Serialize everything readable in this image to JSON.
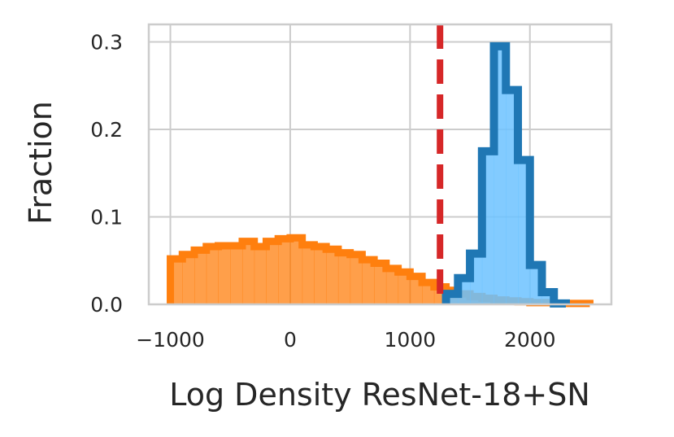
{
  "chart_data": {
    "type": "histogram",
    "xlabel": "Log Density ResNet-18+SN",
    "ylabel": "Fraction",
    "xlim": [
      -1180,
      2680
    ],
    "ylim": [
      0,
      0.32
    ],
    "x_ticks": [
      -1000,
      0,
      1000,
      2000
    ],
    "x_tick_labels": [
      "−1000",
      "0",
      "1000",
      "2000"
    ],
    "y_ticks": [
      0,
      0.1,
      0.2,
      0.3
    ],
    "y_tick_labels": [
      "0.0",
      "0.1",
      "0.2",
      "0.3"
    ],
    "grid": true,
    "threshold_line": {
      "x": 1250,
      "style": "dashed",
      "color": "#d62728"
    },
    "series": [
      {
        "fill_color": "#ff7f0e",
        "edge_color": "#ff7f0e",
        "bin_edges": [
          -1000,
          -900,
          -800,
          -700,
          -600,
          -500,
          -400,
          -300,
          -200,
          -100,
          0,
          100,
          200,
          300,
          400,
          500,
          600,
          700,
          800,
          900,
          1000,
          1100,
          1200,
          1300,
          1400,
          1500,
          1600,
          1700,
          1800,
          1900,
          2000,
          2100,
          2200,
          2300,
          2400,
          2500
        ],
        "values": [
          0.052,
          0.057,
          0.062,
          0.066,
          0.067,
          0.067,
          0.072,
          0.066,
          0.072,
          0.075,
          0.076,
          0.068,
          0.066,
          0.063,
          0.059,
          0.057,
          0.051,
          0.047,
          0.041,
          0.037,
          0.032,
          0.025,
          0.02,
          0.016,
          0.012,
          0.009,
          0.007,
          0.005,
          0.004,
          0.003,
          0.002,
          0.002,
          0.001,
          0.001,
          0.001
        ]
      },
      {
        "fill_color": "#6cc2ff",
        "edge_color": "#1f77b4",
        "bin_edges": [
          1300,
          1400,
          1500,
          1600,
          1700,
          1800,
          1900,
          2000,
          2100,
          2200,
          2300
        ],
        "values": [
          0.012,
          0.03,
          0.058,
          0.175,
          0.295,
          0.245,
          0.165,
          0.045,
          0.014,
          0.001
        ]
      }
    ]
  }
}
